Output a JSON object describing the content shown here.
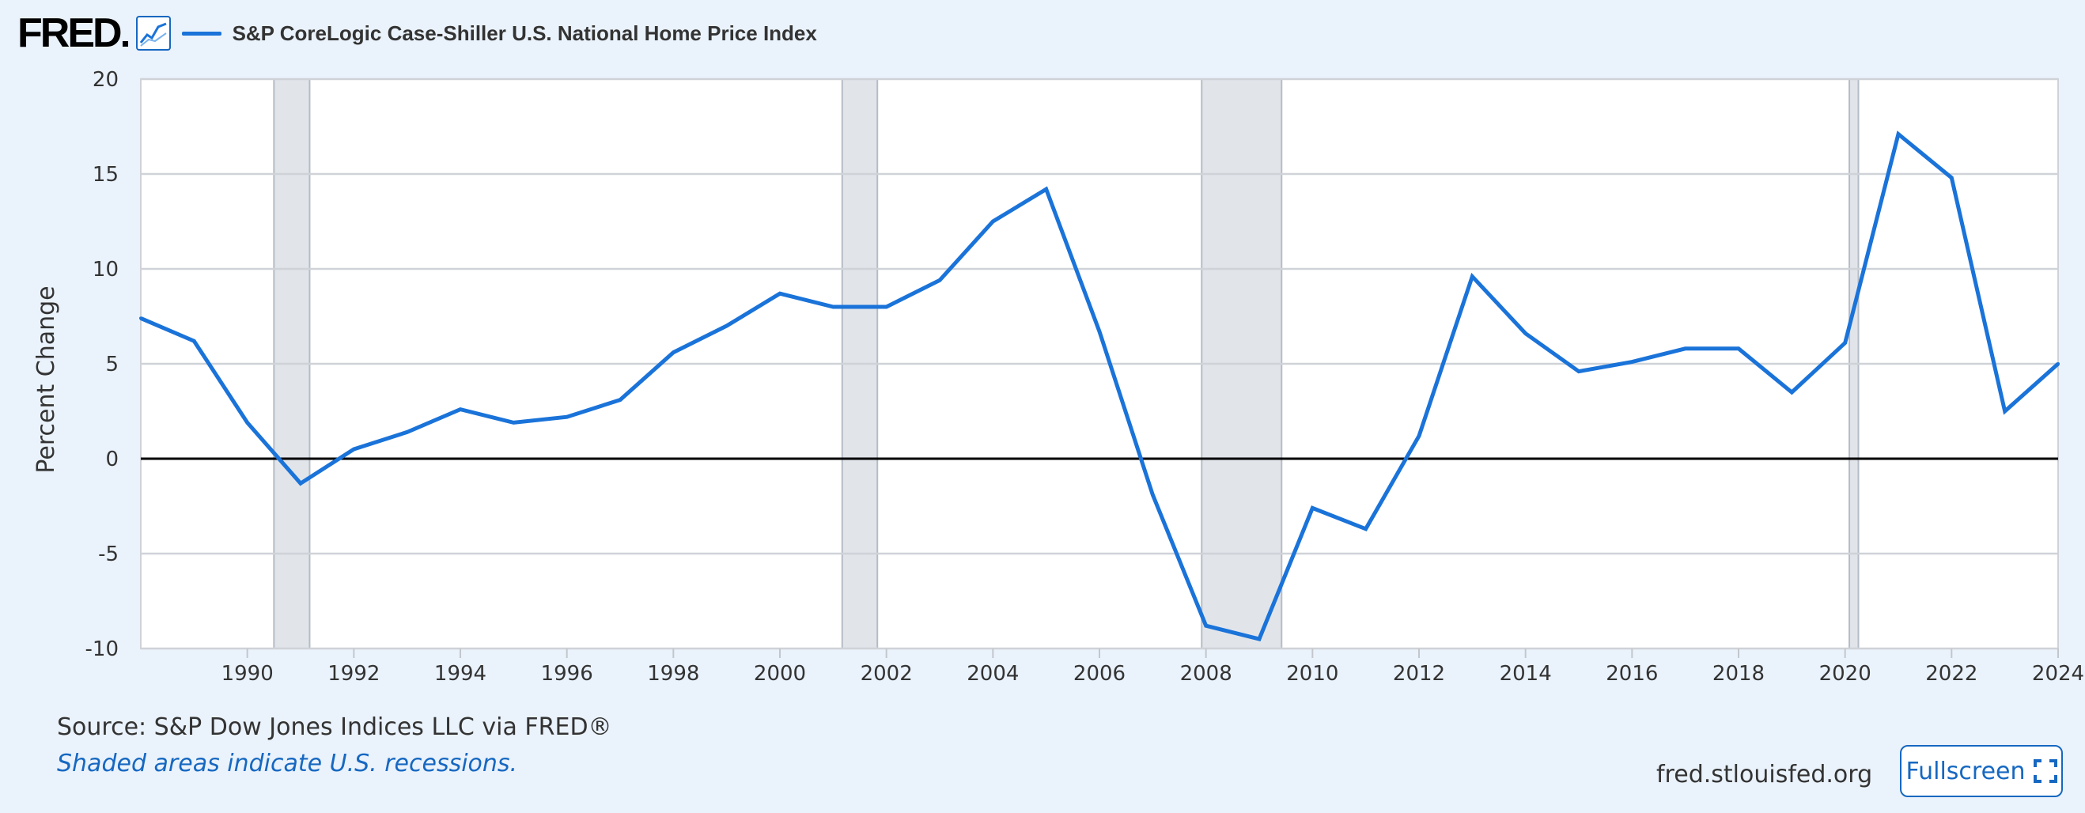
{
  "header": {
    "logo_text": "FRED",
    "logo_icon": "line-chart-icon",
    "series_label": "S&P CoreLogic Case-Shiller U.S. National Home Price Index"
  },
  "footer": {
    "source": "Source: S&P Dow Jones Indices LLC via FRED®",
    "recession_note": "Shaded areas indicate U.S. recessions.",
    "site": "fred.stlouisfed.org",
    "fullscreen_label": "Fullscreen",
    "fullscreen_icon": "expand-icon"
  },
  "colors": {
    "series": "#1a73d9",
    "background": "#eaf2fb",
    "plot_background": "#ffffff",
    "recession": "#e1e5ea",
    "zero_line": "#000000",
    "link": "#1668c1"
  },
  "chart_data": {
    "type": "line",
    "ylabel": "Percent Change",
    "xlabel": "",
    "title": "",
    "ylim": [
      -10,
      20
    ],
    "xlim": [
      1988,
      2024
    ],
    "yticks": [
      -10,
      -5,
      0,
      5,
      10,
      15,
      20
    ],
    "xticks": [
      1990,
      1992,
      1994,
      1996,
      1998,
      2000,
      2002,
      2004,
      2006,
      2008,
      2010,
      2012,
      2014,
      2016,
      2018,
      2020,
      2022,
      2024
    ],
    "grid": true,
    "legend": "top-left",
    "recessions": [
      [
        1990.5,
        1991.17
      ],
      [
        2001.17,
        2001.83
      ],
      [
        2007.92,
        2009.42
      ],
      [
        2020.08,
        2020.25
      ]
    ],
    "series": [
      {
        "name": "S&P CoreLogic Case-Shiller U.S. National Home Price Index",
        "x": [
          1988,
          1989,
          1990,
          1991,
          1992,
          1993,
          1994,
          1995,
          1996,
          1997,
          1998,
          1999,
          2000,
          2001,
          2002,
          2003,
          2004,
          2005,
          2006,
          2007,
          2008,
          2009,
          2010,
          2011,
          2012,
          2013,
          2014,
          2015,
          2016,
          2017,
          2018,
          2019,
          2020,
          2021,
          2022,
          2023,
          2024
        ],
        "values": [
          7.4,
          6.2,
          1.9,
          -1.3,
          0.5,
          1.4,
          2.6,
          1.9,
          2.2,
          3.1,
          5.6,
          7.0,
          8.7,
          8.0,
          8.0,
          9.4,
          12.5,
          14.2,
          6.7,
          -1.9,
          -8.8,
          -9.5,
          -2.6,
          -3.7,
          1.2,
          9.6,
          6.6,
          4.6,
          5.1,
          5.8,
          5.8,
          3.5,
          6.1,
          17.1,
          14.8,
          2.5,
          5.0
        ]
      }
    ]
  }
}
